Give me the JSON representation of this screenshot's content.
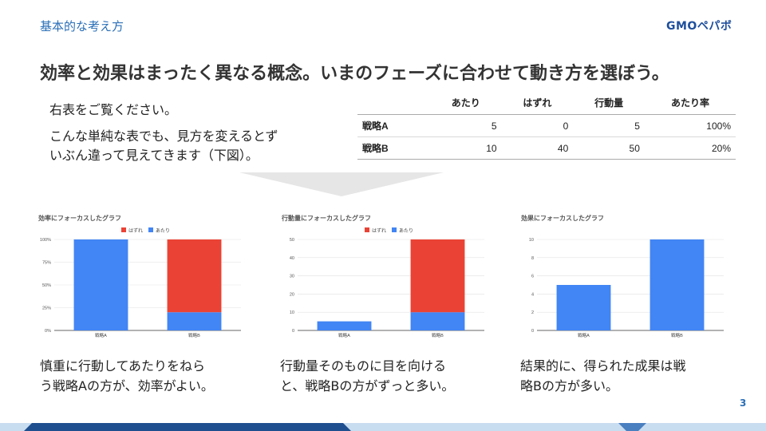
{
  "header": {
    "section": "基本的な考え方",
    "logo": "GMOペパボ"
  },
  "title": "効率と効果はまったく異なる概念。いまのフェーズに合わせて動き方を選ぼう。",
  "intro": {
    "line1": "右表をご覧ください。",
    "line2a": "こんな単純な表でも、見方を変えるとず",
    "line2b": "いぶん違って見えてきます（下図）。"
  },
  "table": {
    "columns": [
      "",
      "あたり",
      "はずれ",
      "行動量",
      "あたり率"
    ],
    "rows": [
      [
        "戦略A",
        "5",
        "0",
        "5",
        "100%"
      ],
      [
        "戦略B",
        "10",
        "40",
        "50",
        "20%"
      ]
    ]
  },
  "chart_data": [
    {
      "type": "bar",
      "stacked": true,
      "title": "効率にフォーカスしたグラフ",
      "categories": [
        "戦略A",
        "戦略B"
      ],
      "series": [
        {
          "name": "はずれ",
          "values": [
            0,
            80
          ]
        },
        {
          "name": "あたり",
          "values": [
            100,
            20
          ]
        }
      ],
      "yticks": [
        "0%",
        "25%",
        "50%",
        "75%",
        "100%"
      ],
      "ylim": [
        0,
        100
      ],
      "legend": "top",
      "grid": true
    },
    {
      "type": "bar",
      "stacked": true,
      "title": "行動量にフォーカスしたグラフ",
      "categories": [
        "戦略A",
        "戦略B"
      ],
      "series": [
        {
          "name": "はずれ",
          "values": [
            0,
            40
          ]
        },
        {
          "name": "あたり",
          "values": [
            5,
            10
          ]
        }
      ],
      "yticks": [
        "0",
        "10",
        "20",
        "30",
        "40",
        "50"
      ],
      "ylim": [
        0,
        50
      ],
      "legend": "top",
      "grid": true
    },
    {
      "type": "bar",
      "stacked": false,
      "title": "効果にフォーカスしたグラフ",
      "categories": [
        "戦略A",
        "戦略B"
      ],
      "series": [
        {
          "values": [
            5,
            10
          ]
        }
      ],
      "yticks": [
        "0",
        "2",
        "4",
        "6",
        "8",
        "10"
      ],
      "ylim": [
        0,
        10
      ],
      "grid": true
    }
  ],
  "colors": {
    "hit": "#4285f4",
    "miss": "#ea4335",
    "accent": "#2a6fb7"
  },
  "captions": [
    {
      "l1": "慎重に行動してあたりをねら",
      "l2": "う戦略Aの方が、効率がよい。"
    },
    {
      "l1": "行動量そのものに目を向ける",
      "l2": "と、戦略Bの方がずっと多い。"
    },
    {
      "l1": "結果的に、得られた成果は戦",
      "l2": "略Bの方が多い。"
    }
  ],
  "page_number": "3"
}
